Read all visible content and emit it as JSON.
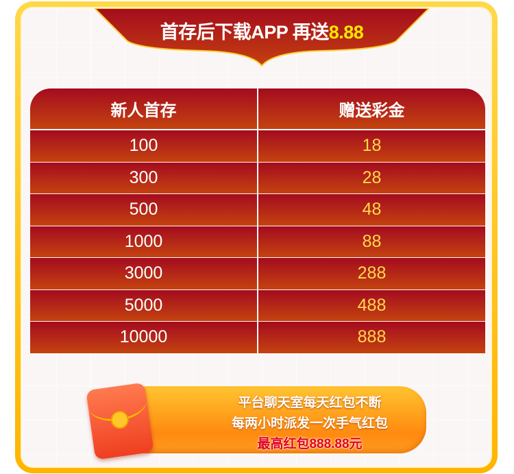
{
  "banner": {
    "title": "首存后下载APP 再送",
    "amount": "8.88"
  },
  "table": {
    "headers": [
      "新人首存",
      "赠送彩金"
    ],
    "rows": [
      [
        "100",
        "18"
      ],
      [
        "300",
        "28"
      ],
      [
        "500",
        "48"
      ],
      [
        "1000",
        "88"
      ],
      [
        "3000",
        "288"
      ],
      [
        "5000",
        "488"
      ],
      [
        "10000",
        "888"
      ]
    ]
  },
  "promo": {
    "line1": "平台聊天室每天红包不断",
    "line2": "每两小时派发一次手气红包",
    "line3": "最高红包888.88元",
    "icon": "red-envelope-icon"
  },
  "colors": {
    "accent": "#ffe600",
    "header_red": "#a40b1f",
    "gold": "#ffc400"
  }
}
